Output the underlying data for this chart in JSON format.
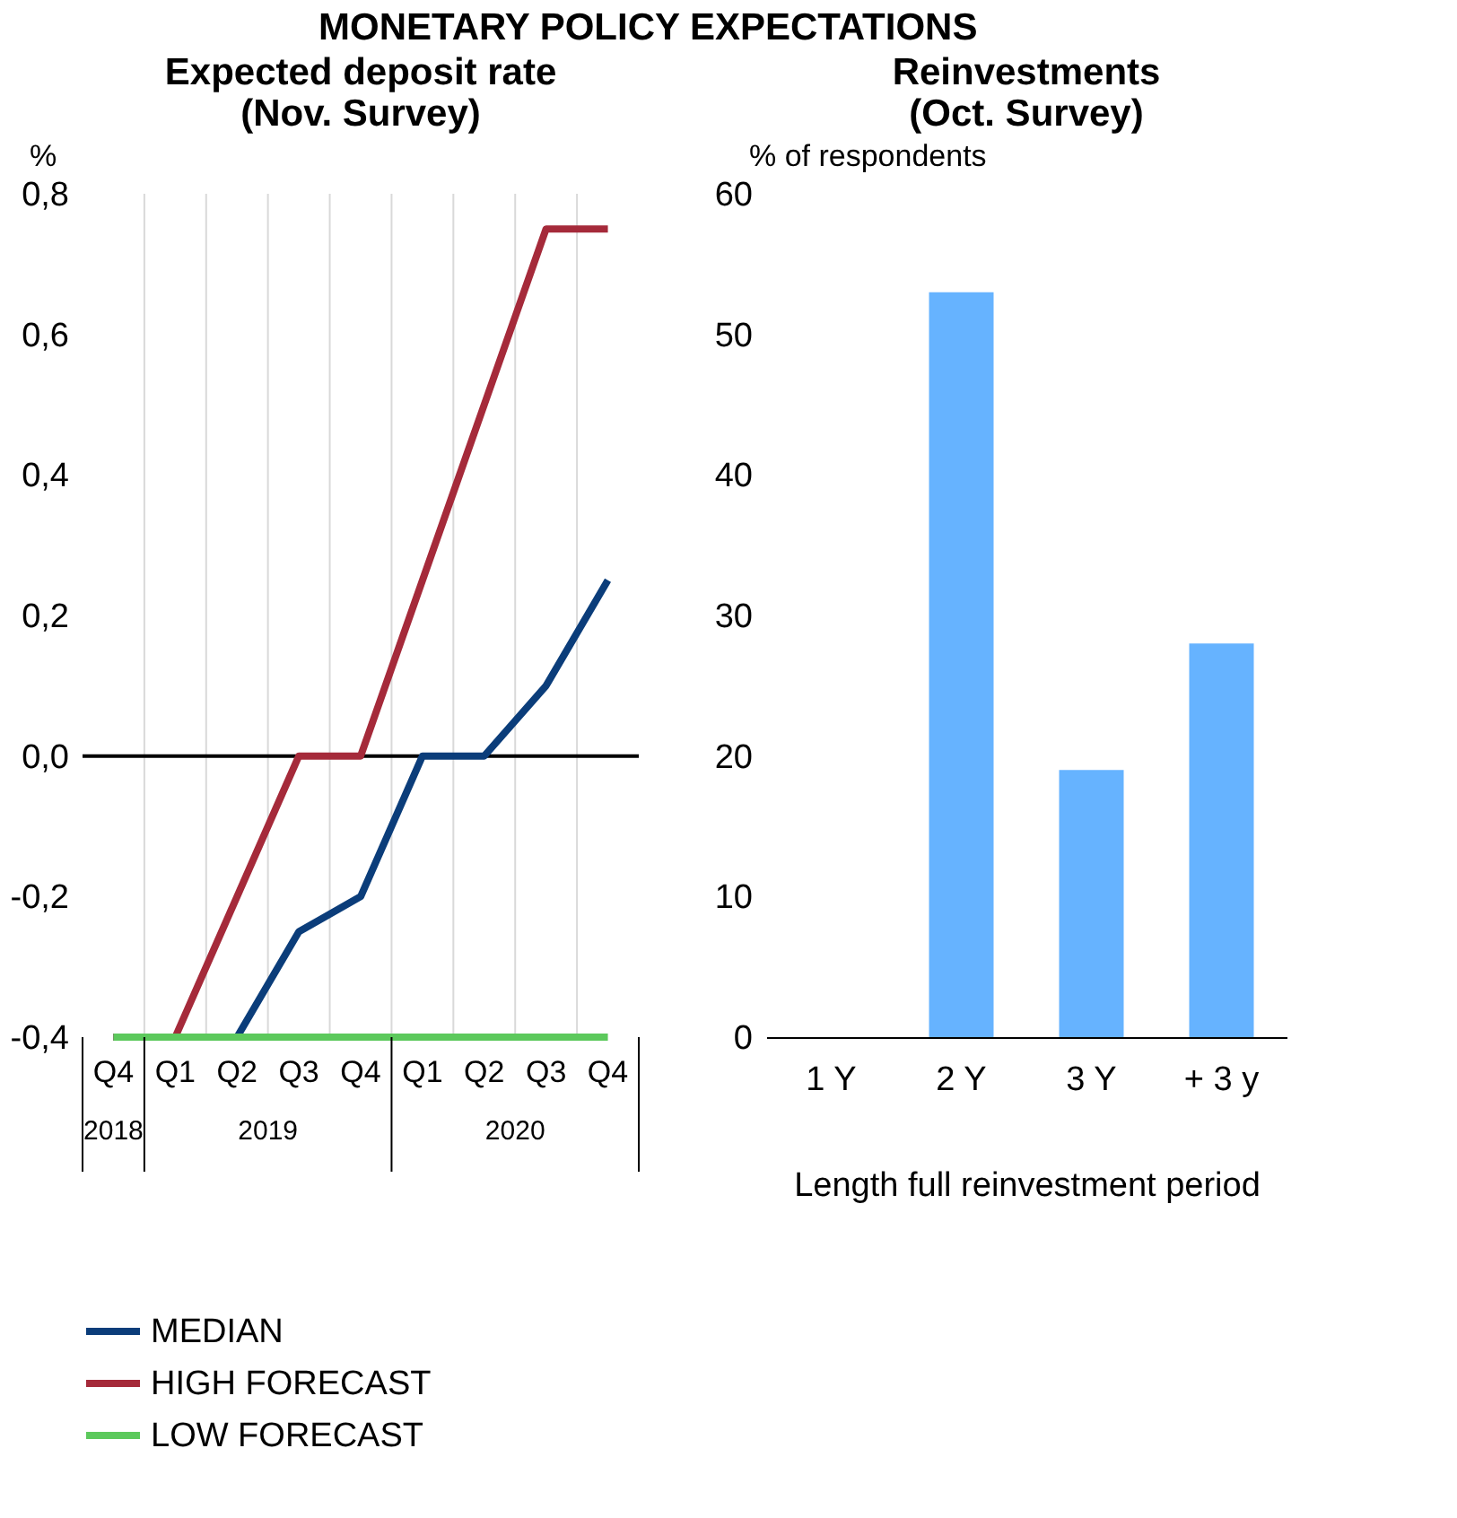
{
  "chart_data": [
    {
      "type": "line",
      "title": [
        "Expected deposit rate",
        "(Nov. Survey)"
      ],
      "ylabel": "%",
      "categories": [
        "Q4",
        "Q1",
        "Q2",
        "Q3",
        "Q4",
        "Q1",
        "Q2",
        "Q3",
        "Q4"
      ],
      "series": [
        {
          "name": "MEDIAN",
          "color": "#0b3d7a",
          "values": [
            -0.4,
            -0.4,
            -0.4,
            -0.25,
            -0.2,
            0,
            0,
            0.1,
            0.25
          ]
        },
        {
          "name": "HIGH FORECAST",
          "color": "#a52a3a",
          "values": [
            -0.4,
            -0.4,
            -0.2,
            0,
            0,
            0.25,
            0.5,
            0.75,
            0.75
          ]
        },
        {
          "name": "LOW FORECAST",
          "color": "#5cc95c",
          "values": [
            -0.4,
            -0.4,
            -0.4,
            -0.4,
            -0.4,
            -0.4,
            -0.4,
            -0.4,
            -0.4
          ]
        }
      ],
      "ylim": [
        -0.4,
        0.8
      ],
      "yticks": [
        {
          "value": -0.4,
          "label": "-0,4"
        },
        {
          "value": -0.2,
          "label": "-0,2"
        },
        {
          "value": 0,
          "label": "0,0"
        },
        {
          "value": 0.2,
          "label": "0,2"
        },
        {
          "value": 0.4,
          "label": "0,4"
        },
        {
          "value": 0.6,
          "label": "0,6"
        },
        {
          "value": 0.8,
          "label": "0,8"
        }
      ],
      "ref_lines": [
        {
          "axis": "y",
          "value": 0,
          "color": "#000000"
        }
      ],
      "annotations": [
        "MONETARY POLICY EXPECTATIONS",
        "2018",
        "2019",
        "2020"
      ],
      "grid": "x",
      "legend": "bottom",
      "line_style": "solid",
      "marker": "none"
    },
    {
      "type": "bar",
      "title": [
        "Reinvestments",
        "(Oct. Survey)"
      ],
      "ylabel": "% of respondents",
      "xlabel": "Length full reinvestment period",
      "categories": [
        "1 Y",
        "2 Y",
        "3 Y",
        "+ 3 y"
      ],
      "values": [
        0,
        53,
        19,
        28
      ],
      "color": "#66b3ff",
      "ylim": [
        0,
        60
      ],
      "yticks": [
        0,
        10,
        20,
        30,
        40,
        50,
        60
      ],
      "grid": false
    }
  ]
}
